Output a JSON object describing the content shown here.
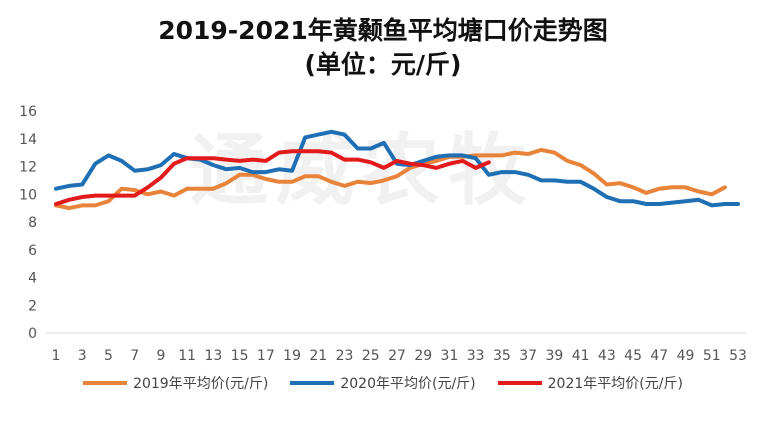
{
  "chart_data": {
    "type": "line",
    "title_line1": "2019-2021年黄颡鱼平均塘口价走势图",
    "title_line2": "(单位：元/斤)",
    "watermark": "通威农牧",
    "x": [
      1,
      2,
      3,
      4,
      5,
      6,
      7,
      8,
      9,
      10,
      11,
      12,
      13,
      14,
      15,
      16,
      17,
      18,
      19,
      20,
      21,
      22,
      23,
      24,
      25,
      26,
      27,
      28,
      29,
      30,
      31,
      32,
      33,
      34,
      35,
      36,
      37,
      38,
      39,
      40,
      41,
      42,
      43,
      44,
      45,
      46,
      47,
      48,
      49,
      50,
      51,
      52,
      53
    ],
    "x_tick_labels": [
      "1",
      "3",
      "5",
      "7",
      "9",
      "11",
      "13",
      "15",
      "17",
      "19",
      "21",
      "23",
      "25",
      "27",
      "29",
      "31",
      "33",
      "35",
      "37",
      "39",
      "41",
      "43",
      "45",
      "47",
      "49",
      "51",
      "53"
    ],
    "ylim": [
      0,
      16
    ],
    "y_tick_labels": [
      "0",
      "2",
      "4",
      "6",
      "8",
      "10",
      "12",
      "14",
      "16"
    ],
    "grid": false,
    "legend_position": "bottom",
    "series": [
      {
        "name": "2019年平均价(元/斤)",
        "color": "#e8833a",
        "values": [
          9.2,
          9.0,
          9.2,
          9.2,
          9.5,
          10.4,
          10.3,
          10.0,
          10.2,
          9.9,
          10.4,
          10.4,
          10.4,
          10.8,
          11.4,
          11.4,
          11.1,
          10.9,
          10.9,
          11.3,
          11.3,
          10.9,
          10.6,
          10.9,
          10.8,
          11.0,
          11.3,
          11.9,
          12.2,
          12.4,
          12.7,
          12.7,
          12.8,
          12.8,
          12.8,
          13.0,
          12.9,
          13.2,
          13.0,
          12.4,
          12.1,
          11.5,
          10.7,
          10.8,
          10.5,
          10.1,
          10.4,
          10.5,
          10.5,
          10.2,
          10.0,
          10.5,
          null
        ]
      },
      {
        "name": "2020年平均价(元/斤)",
        "color": "#1f6fb4",
        "values": [
          10.4,
          10.6,
          10.7,
          12.2,
          12.8,
          12.4,
          11.7,
          11.8,
          12.1,
          12.9,
          12.6,
          12.5,
          12.1,
          11.8,
          11.9,
          11.6,
          11.6,
          11.8,
          11.7,
          14.1,
          14.3,
          14.5,
          14.3,
          13.3,
          13.3,
          13.7,
          12.2,
          12.1,
          12.4,
          12.7,
          12.8,
          12.8,
          12.6,
          11.4,
          11.6,
          11.6,
          11.4,
          11.0,
          11.0,
          10.9,
          10.9,
          10.4,
          9.8,
          9.5,
          9.5,
          9.3,
          9.3,
          9.4,
          9.5,
          9.6,
          9.2,
          9.3,
          9.3
        ]
      },
      {
        "name": "2021年平均价(元/斤)",
        "color": "#e31a1c",
        "values": [
          9.3,
          9.6,
          9.8,
          9.9,
          9.9,
          9.9,
          9.9,
          10.5,
          11.2,
          12.2,
          12.6,
          12.6,
          12.6,
          12.5,
          12.4,
          12.5,
          12.4,
          13.0,
          13.1,
          13.1,
          13.1,
          13.0,
          12.5,
          12.5,
          12.3,
          11.9,
          12.4,
          12.2,
          12.1,
          11.9,
          12.2,
          12.4,
          11.9,
          12.3,
          null,
          null,
          null,
          null,
          null,
          null,
          null,
          null,
          null,
          null,
          null,
          null,
          null,
          null,
          null,
          null,
          null,
          null,
          null
        ]
      }
    ]
  }
}
